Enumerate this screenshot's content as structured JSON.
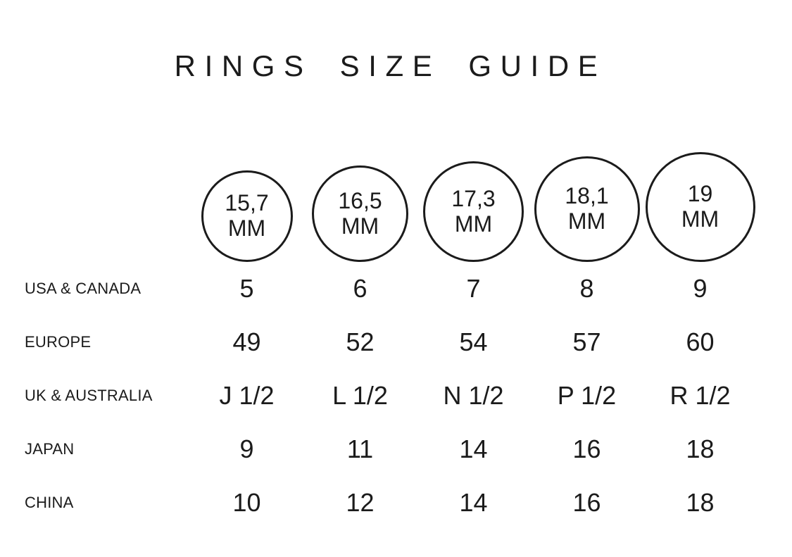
{
  "title": "RINGS SIZE GUIDE",
  "colors": {
    "text": "#1b1b1b",
    "background": "#ffffff",
    "circle_outline": "#1b1b1b"
  },
  "chart_data": {
    "type": "table",
    "title": "RINGS SIZE GUIDE",
    "column_headers": [
      {
        "diameter": "15,7",
        "unit": "MM"
      },
      {
        "diameter": "16,5",
        "unit": "MM"
      },
      {
        "diameter": "17,3",
        "unit": "MM"
      },
      {
        "diameter": "18,1",
        "unit": "MM"
      },
      {
        "diameter": "19",
        "unit": "MM"
      }
    ],
    "rows": [
      {
        "label": "USA & CANADA",
        "values": [
          "5",
          "6",
          "7",
          "8",
          "9"
        ]
      },
      {
        "label": "EUROPE",
        "values": [
          "49",
          "52",
          "54",
          "57",
          "60"
        ]
      },
      {
        "label": "UK & AUSTRALIA",
        "values": [
          "J 1/2",
          "L 1/2",
          "N 1/2",
          "P 1/2",
          "R 1/2"
        ]
      },
      {
        "label": "JAPAN",
        "values": [
          "9",
          "11",
          "14",
          "16",
          "18"
        ]
      },
      {
        "label": "CHINA",
        "values": [
          "10",
          "12",
          "14",
          "16",
          "18"
        ]
      }
    ]
  }
}
